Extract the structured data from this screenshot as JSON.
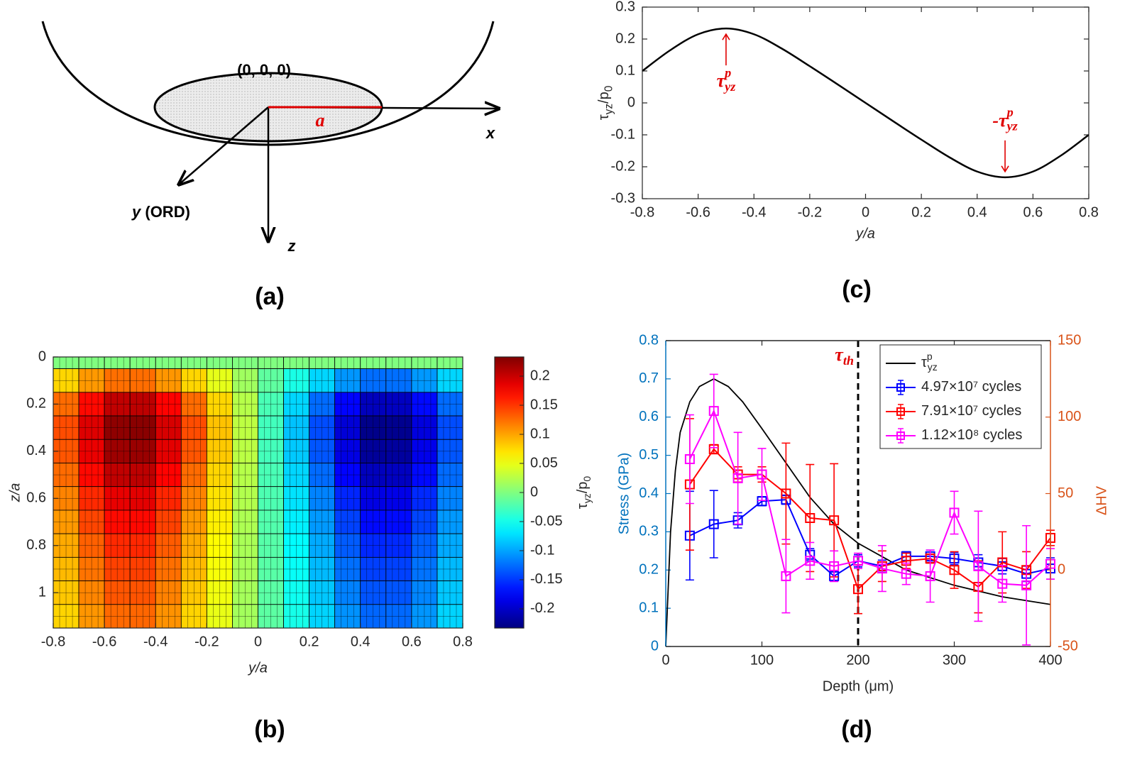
{
  "diagram_a": {
    "origin_label": "(0, 0, 0)",
    "a_label": "a",
    "x_label": "x",
    "y_label": "y",
    "y_label_suffix": " (ORD)",
    "z_label": "z",
    "panel_label": "(a)"
  },
  "chart_data": [
    {
      "type": "line",
      "panel_label": "(c)",
      "xlabel": "y/a",
      "ylabel": {
        "t1": "τ",
        "s1": "yz",
        "t2": "/p",
        "s2": "0"
      },
      "x": [
        -0.8,
        -0.7,
        -0.6,
        -0.5,
        -0.4,
        -0.3,
        -0.2,
        -0.1,
        0,
        0.1,
        0.2,
        0.3,
        0.4,
        0.5,
        0.6,
        0.7,
        0.8
      ],
      "values": [
        0.1,
        0.165,
        0.215,
        0.233,
        0.215,
        0.17,
        0.115,
        0.058,
        0,
        -0.058,
        -0.115,
        -0.17,
        -0.215,
        -0.233,
        -0.215,
        -0.165,
        -0.1
      ],
      "color": "#000000",
      "xlim": [
        -0.8,
        0.8
      ],
      "ylim": [
        -0.3,
        0.3
      ],
      "xticks": [
        -0.8,
        -0.6,
        -0.4,
        -0.2,
        0,
        0.2,
        0.4,
        0.6,
        0.8
      ],
      "yticks": [
        -0.3,
        -0.2,
        -0.1,
        0,
        0.1,
        0.2,
        0.3
      ],
      "annotations": [
        {
          "text": "τ",
          "sup": "p",
          "sub": "yz",
          "x": -0.5,
          "y": 0.233,
          "direction": "up"
        },
        {
          "text": "-τ",
          "sup": "p",
          "sub": "yz",
          "x": 0.5,
          "y": -0.233,
          "direction": "down"
        }
      ]
    },
    {
      "type": "heatmap",
      "panel_label": "(b)",
      "xlabel": "y/a",
      "ylabel": "z/a",
      "colormap": "jet",
      "x": [
        -0.75,
        -0.65,
        -0.55,
        -0.45,
        -0.35,
        -0.25,
        -0.15,
        -0.05,
        0.05,
        0.15,
        0.25,
        0.35,
        0.45,
        0.55,
        0.65,
        0.75
      ],
      "y": [
        0,
        0.1,
        0.2,
        0.3,
        0.4,
        0.5,
        0.6,
        0.7,
        0.8,
        0.9,
        1.0,
        1.1
      ],
      "values": [
        [
          0,
          0,
          0,
          0,
          0,
          0,
          0,
          0,
          0,
          0,
          0,
          0,
          0,
          0,
          0,
          0
        ],
        [
          0.077,
          0.105,
          0.124,
          0.125,
          0.106,
          0.077,
          0.047,
          0.015,
          -0.015,
          -0.047,
          -0.077,
          -0.106,
          -0.125,
          -0.124,
          -0.105,
          -0.077
        ],
        [
          0.126,
          0.171,
          0.203,
          0.205,
          0.174,
          0.126,
          0.077,
          0.025,
          -0.025,
          -0.077,
          -0.126,
          -0.174,
          -0.205,
          -0.203,
          -0.171,
          -0.126
        ],
        [
          0.14,
          0.19,
          0.226,
          0.228,
          0.193,
          0.14,
          0.086,
          0.028,
          -0.028,
          -0.086,
          -0.14,
          -0.193,
          -0.228,
          -0.226,
          -0.19,
          -0.14
        ],
        [
          0.136,
          0.184,
          0.219,
          0.221,
          0.187,
          0.136,
          0.083,
          0.027,
          -0.027,
          -0.083,
          -0.136,
          -0.187,
          -0.221,
          -0.219,
          -0.184,
          -0.136
        ],
        [
          0.126,
          0.171,
          0.203,
          0.205,
          0.174,
          0.126,
          0.077,
          0.025,
          -0.025,
          -0.077,
          -0.126,
          -0.174,
          -0.205,
          -0.203,
          -0.171,
          -0.126
        ],
        [
          0.115,
          0.156,
          0.185,
          0.187,
          0.158,
          0.115,
          0.071,
          0.023,
          -0.023,
          -0.071,
          -0.115,
          -0.158,
          -0.187,
          -0.185,
          -0.156,
          -0.115
        ],
        [
          0.105,
          0.143,
          0.17,
          0.171,
          0.145,
          0.105,
          0.065,
          0.021,
          -0.021,
          -0.065,
          -0.105,
          -0.145,
          -0.171,
          -0.17,
          -0.143,
          -0.105
        ],
        [
          0.097,
          0.131,
          0.156,
          0.157,
          0.133,
          0.097,
          0.059,
          0.019,
          -0.019,
          -0.059,
          -0.097,
          -0.133,
          -0.157,
          -0.156,
          -0.131,
          -0.097
        ],
        [
          0.09,
          0.122,
          0.145,
          0.146,
          0.124,
          0.09,
          0.055,
          0.018,
          -0.018,
          -0.055,
          -0.09,
          -0.124,
          -0.146,
          -0.145,
          -0.122,
          -0.09
        ],
        [
          0.084,
          0.114,
          0.136,
          0.137,
          0.116,
          0.084,
          0.052,
          0.017,
          -0.017,
          -0.052,
          -0.084,
          -0.116,
          -0.137,
          -0.136,
          -0.114,
          -0.084
        ],
        [
          0.078,
          0.106,
          0.127,
          0.128,
          0.108,
          0.078,
          0.048,
          0.016,
          -0.016,
          -0.048,
          -0.078,
          -0.108,
          -0.128,
          -0.127,
          -0.106,
          -0.078
        ]
      ],
      "xlim": [
        -0.8,
        0.8
      ],
      "ylim": [
        0,
        1.15
      ],
      "xticks": [
        -0.8,
        -0.6,
        -0.4,
        -0.2,
        0,
        0.2,
        0.4,
        0.6,
        0.8
      ],
      "yticks": [
        0,
        0.2,
        0.4,
        0.6,
        0.8,
        1
      ],
      "colorbar": {
        "clim": [
          -0.233,
          0.233
        ],
        "ticks": [
          -0.2,
          -0.15,
          -0.1,
          -0.05,
          0,
          0.05,
          0.1,
          0.15,
          0.2
        ],
        "label": {
          "t1": "τ",
          "s1": "yz",
          "t2": "/p",
          "s2": "0"
        }
      }
    },
    {
      "type": "errorbar",
      "panel_label": "(d)",
      "xlabel": "Depth (μm)",
      "ylabel": "Stress (GPa)",
      "y2label": "ΔHV",
      "ycolor": "#0072bd",
      "y2color": "#d95319",
      "legend": "northeast",
      "xlim": [
        0,
        400
      ],
      "ylim": [
        0,
        0.8
      ],
      "y2lim": [
        -50,
        150
      ],
      "xticks": [
        0,
        100,
        200,
        300,
        400
      ],
      "yticks": [
        0,
        0.1,
        0.2,
        0.3,
        0.4,
        0.5,
        0.6,
        0.7,
        0.8
      ],
      "y2ticks": [
        -50,
        0,
        50,
        100,
        150
      ],
      "vline": {
        "x": 200,
        "text": "τ",
        "sub": "th"
      },
      "series": [
        {
          "name": "τ",
          "name_sup": "p",
          "name_sub": "yz",
          "color": "#000000",
          "axis": "y",
          "x": [
            0,
            5,
            10,
            15,
            25,
            35,
            50,
            65,
            80,
            100,
            125,
            150,
            175,
            200,
            250,
            300,
            350,
            400
          ],
          "values": [
            0,
            0.3,
            0.46,
            0.56,
            0.64,
            0.68,
            0.7,
            0.68,
            0.64,
            0.57,
            0.48,
            0.39,
            0.32,
            0.27,
            0.2,
            0.16,
            0.13,
            0.11
          ]
        },
        {
          "name": "4.97×10⁷ cycles",
          "color": "#0000ff",
          "axis": "y2",
          "x": [
            25,
            50,
            75,
            100,
            125,
            150,
            175,
            200,
            225,
            250,
            275,
            300,
            325,
            350,
            375,
            400
          ],
          "values": [
            22.5,
            30,
            32.5,
            45,
            46,
            10,
            -4,
            6,
            2.5,
            9,
            9,
            7.5,
            5,
            2.5,
            -2.5,
            1
          ],
          "errors": [
            29,
            22,
            5,
            3,
            3,
            4,
            3,
            4,
            4,
            3,
            4,
            4,
            5,
            5,
            5,
            7
          ]
        },
        {
          "name": "7.91×10⁷ cycles",
          "color": "#ff0000",
          "axis": "y2",
          "x": [
            25,
            50,
            75,
            100,
            125,
            150,
            175,
            200,
            225,
            250,
            275,
            300,
            325,
            350,
            375,
            400
          ],
          "values": [
            56,
            79,
            62.5,
            62.5,
            50,
            34,
            32.5,
            -12.5,
            2.5,
            6,
            7.5,
            0,
            -11,
            5,
            0,
            21
          ],
          "errors": [
            43,
            3,
            5,
            5,
            33,
            35,
            37,
            16,
            10,
            5,
            3,
            12,
            17,
            20,
            12,
            5
          ]
        },
        {
          "name": "1.12×10⁸ cycles",
          "color": "#ff00ff",
          "axis": "y2",
          "x": [
            25,
            50,
            75,
            100,
            125,
            150,
            175,
            200,
            225,
            250,
            275,
            300,
            325,
            350,
            375,
            400
          ],
          "values": [
            72.5,
            104,
            60,
            62.5,
            -4,
            6,
            2.5,
            6,
            1,
            -2.5,
            -4,
            37.5,
            2.5,
            -9,
            -10,
            4
          ],
          "errors": [
            29,
            24,
            30,
            17,
            24,
            12,
            10,
            5,
            15,
            7,
            17,
            14,
            36,
            12,
            39,
            10
          ]
        }
      ]
    }
  ]
}
